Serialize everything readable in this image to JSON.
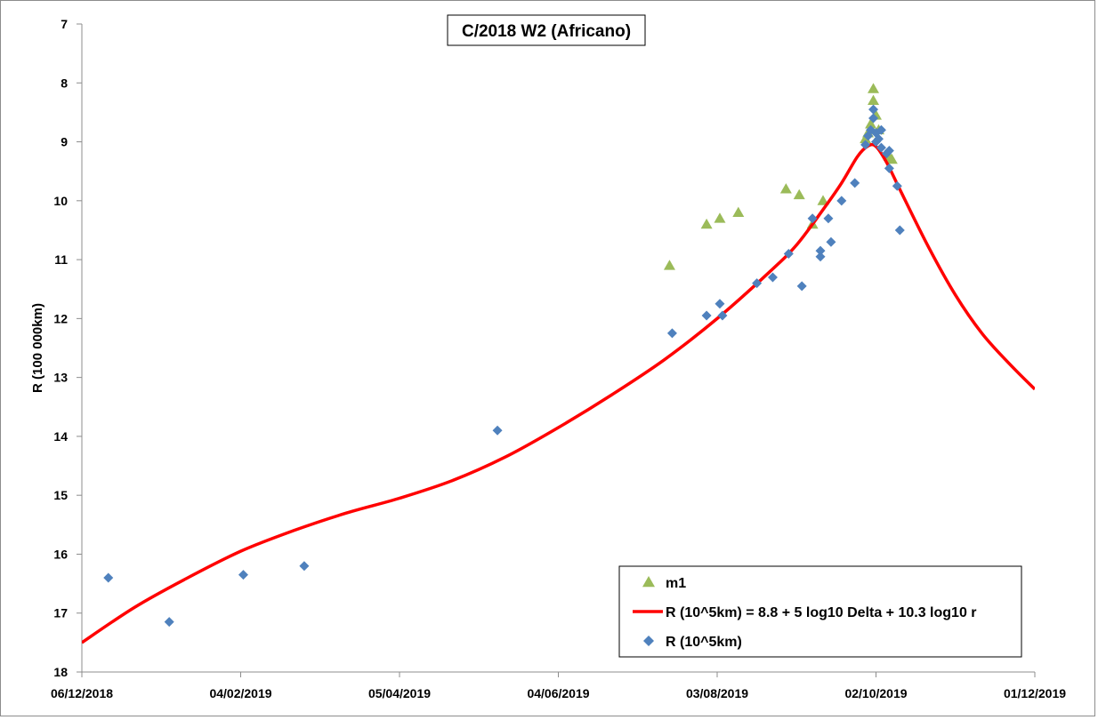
{
  "chart_data": {
    "type": "scatter",
    "title": "C/2018 W2 (Africano)",
    "xlabel": "",
    "ylabel": "R (100 000km)",
    "x_axis": {
      "type": "date",
      "min": "2018-12-06",
      "max": "2019-12-01",
      "tick_dates": [
        "2018-12-06",
        "2019-02-04",
        "2019-04-05",
        "2019-06-04",
        "2019-08-03",
        "2019-10-02",
        "2019-12-01"
      ],
      "tick_labels": [
        "06/12/2018",
        "04/02/2019",
        "05/04/2019",
        "04/06/2019",
        "03/08/2019",
        "02/10/2019",
        "01/12/2019"
      ]
    },
    "y_axis": {
      "min": 7,
      "max": 18,
      "reversed": true,
      "ticks": [
        7,
        8,
        9,
        10,
        11,
        12,
        13,
        14,
        15,
        16,
        17,
        18
      ]
    },
    "grid": false,
    "legend_position": "bottom-right",
    "colors": {
      "m1": "#9bbb59",
      "fit": "#ff0000",
      "R": "#4f81bd"
    },
    "series": [
      {
        "name": "m1",
        "marker": "triangle",
        "points": [
          {
            "x": "2019-07-16",
            "y": 11.1
          },
          {
            "x": "2019-07-30",
            "y": 10.4
          },
          {
            "x": "2019-08-04",
            "y": 10.3
          },
          {
            "x": "2019-08-11",
            "y": 10.2
          },
          {
            "x": "2019-08-29",
            "y": 9.8
          },
          {
            "x": "2019-09-03",
            "y": 9.9
          },
          {
            "x": "2019-09-08",
            "y": 10.4
          },
          {
            "x": "2019-09-12",
            "y": 10.0
          },
          {
            "x": "2019-09-28",
            "y": 8.95
          },
          {
            "x": "2019-09-29",
            "y": 8.85
          },
          {
            "x": "2019-09-30",
            "y": 8.7
          },
          {
            "x": "2019-10-01",
            "y": 8.1
          },
          {
            "x": "2019-10-01",
            "y": 8.3
          },
          {
            "x": "2019-10-02",
            "y": 8.55
          },
          {
            "x": "2019-10-03",
            "y": 8.8
          },
          {
            "x": "2019-10-07",
            "y": 9.25
          },
          {
            "x": "2019-10-08",
            "y": 9.3
          }
        ]
      },
      {
        "name": "R (10^5km) = 8.8 + 5 log10 Delta + 10.3 log10 r",
        "marker": "line",
        "points": [
          {
            "x": "2018-12-06",
            "y": 17.5
          },
          {
            "x": "2018-12-26",
            "y": 16.9
          },
          {
            "x": "2019-01-15",
            "y": 16.4
          },
          {
            "x": "2019-02-04",
            "y": 15.95
          },
          {
            "x": "2019-02-24",
            "y": 15.6
          },
          {
            "x": "2019-03-16",
            "y": 15.3
          },
          {
            "x": "2019-04-05",
            "y": 15.05
          },
          {
            "x": "2019-04-25",
            "y": 14.75
          },
          {
            "x": "2019-05-15",
            "y": 14.35
          },
          {
            "x": "2019-06-04",
            "y": 13.85
          },
          {
            "x": "2019-06-24",
            "y": 13.3
          },
          {
            "x": "2019-07-14",
            "y": 12.7
          },
          {
            "x": "2019-08-03",
            "y": 12.0
          },
          {
            "x": "2019-08-23",
            "y": 11.2
          },
          {
            "x": "2019-09-02",
            "y": 10.75
          },
          {
            "x": "2019-09-12",
            "y": 10.15
          },
          {
            "x": "2019-09-19",
            "y": 9.7
          },
          {
            "x": "2019-09-25",
            "y": 9.25
          },
          {
            "x": "2019-09-29",
            "y": 9.07
          },
          {
            "x": "2019-10-02",
            "y": 9.08
          },
          {
            "x": "2019-10-06",
            "y": 9.35
          },
          {
            "x": "2019-10-12",
            "y": 9.9
          },
          {
            "x": "2019-10-22",
            "y": 10.8
          },
          {
            "x": "2019-11-01",
            "y": 11.6
          },
          {
            "x": "2019-11-11",
            "y": 12.25
          },
          {
            "x": "2019-11-21",
            "y": 12.75
          },
          {
            "x": "2019-12-01",
            "y": 13.2
          }
        ]
      },
      {
        "name": "R (10^5km)",
        "marker": "diamond",
        "points": [
          {
            "x": "2018-12-16",
            "y": 16.4
          },
          {
            "x": "2019-01-08",
            "y": 17.15
          },
          {
            "x": "2019-02-05",
            "y": 16.35
          },
          {
            "x": "2019-02-28",
            "y": 16.2
          },
          {
            "x": "2019-05-12",
            "y": 13.9
          },
          {
            "x": "2019-07-17",
            "y": 12.25
          },
          {
            "x": "2019-07-30",
            "y": 11.95
          },
          {
            "x": "2019-08-04",
            "y": 11.75
          },
          {
            "x": "2019-08-05",
            "y": 11.95
          },
          {
            "x": "2019-08-18",
            "y": 11.4
          },
          {
            "x": "2019-08-24",
            "y": 11.3
          },
          {
            "x": "2019-08-30",
            "y": 10.9
          },
          {
            "x": "2019-09-04",
            "y": 11.45
          },
          {
            "x": "2019-09-08",
            "y": 10.3
          },
          {
            "x": "2019-09-11",
            "y": 10.85
          },
          {
            "x": "2019-09-11",
            "y": 10.95
          },
          {
            "x": "2019-09-14",
            "y": 10.3
          },
          {
            "x": "2019-09-15",
            "y": 10.7
          },
          {
            "x": "2019-09-19",
            "y": 10.0
          },
          {
            "x": "2019-09-24",
            "y": 9.7
          },
          {
            "x": "2019-09-28",
            "y": 9.05
          },
          {
            "x": "2019-09-29",
            "y": 8.9
          },
          {
            "x": "2019-09-30",
            "y": 8.8
          },
          {
            "x": "2019-10-01",
            "y": 8.45
          },
          {
            "x": "2019-10-01",
            "y": 8.6
          },
          {
            "x": "2019-10-02",
            "y": 8.85
          },
          {
            "x": "2019-10-02",
            "y": 9.0
          },
          {
            "x": "2019-10-03",
            "y": 8.95
          },
          {
            "x": "2019-10-04",
            "y": 8.8
          },
          {
            "x": "2019-10-04",
            "y": 9.1
          },
          {
            "x": "2019-10-06",
            "y": 9.2
          },
          {
            "x": "2019-10-07",
            "y": 9.15
          },
          {
            "x": "2019-10-07",
            "y": 9.45
          },
          {
            "x": "2019-10-10",
            "y": 9.75
          },
          {
            "x": "2019-10-11",
            "y": 10.5
          }
        ]
      }
    ]
  }
}
